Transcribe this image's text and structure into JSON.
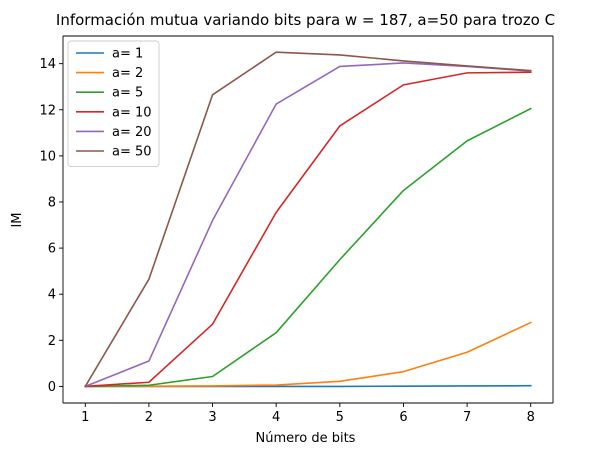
{
  "chart_data": {
    "type": "line",
    "title": "Información mutua variando bits para w = 187, a=50 para trozo C",
    "xlabel": "Número de bits",
    "ylabel": "IM",
    "x": [
      1,
      2,
      3,
      4,
      5,
      6,
      7,
      8
    ],
    "xticks": [
      "1",
      "2",
      "3",
      "4",
      "5",
      "6",
      "7",
      "8"
    ],
    "yticks": [
      "0",
      "2",
      "4",
      "6",
      "8",
      "10",
      "12",
      "14"
    ],
    "xlim": [
      0.65,
      8.35
    ],
    "ylim": [
      -0.72,
      15.2
    ],
    "grid": false,
    "legend_position": "upper-left",
    "series": [
      {
        "name": "a= 1",
        "color": "#1f77b4",
        "values": [
          0.0,
          0.0,
          0.0,
          0.0,
          0.0,
          0.01,
          0.02,
          0.03
        ]
      },
      {
        "name": "a= 2",
        "color": "#ff7f0e",
        "values": [
          0.0,
          0.01,
          0.02,
          0.06,
          0.22,
          0.64,
          1.48,
          2.77
        ]
      },
      {
        "name": "a= 5",
        "color": "#2ca02c",
        "values": [
          0.0,
          0.05,
          0.43,
          2.33,
          5.5,
          8.5,
          10.65,
          12.05
        ]
      },
      {
        "name": "a= 10",
        "color": "#d62728",
        "values": [
          0.0,
          0.18,
          2.7,
          7.55,
          11.3,
          13.08,
          13.6,
          13.63
        ]
      },
      {
        "name": "a= 20",
        "color": "#9467bd",
        "values": [
          0.0,
          1.1,
          7.2,
          12.25,
          13.88,
          14.03,
          13.88,
          13.68
        ]
      },
      {
        "name": "a= 50",
        "color": "#8c564b",
        "values": [
          0.0,
          4.65,
          12.65,
          14.5,
          14.38,
          14.12,
          13.9,
          13.7
        ]
      }
    ]
  }
}
